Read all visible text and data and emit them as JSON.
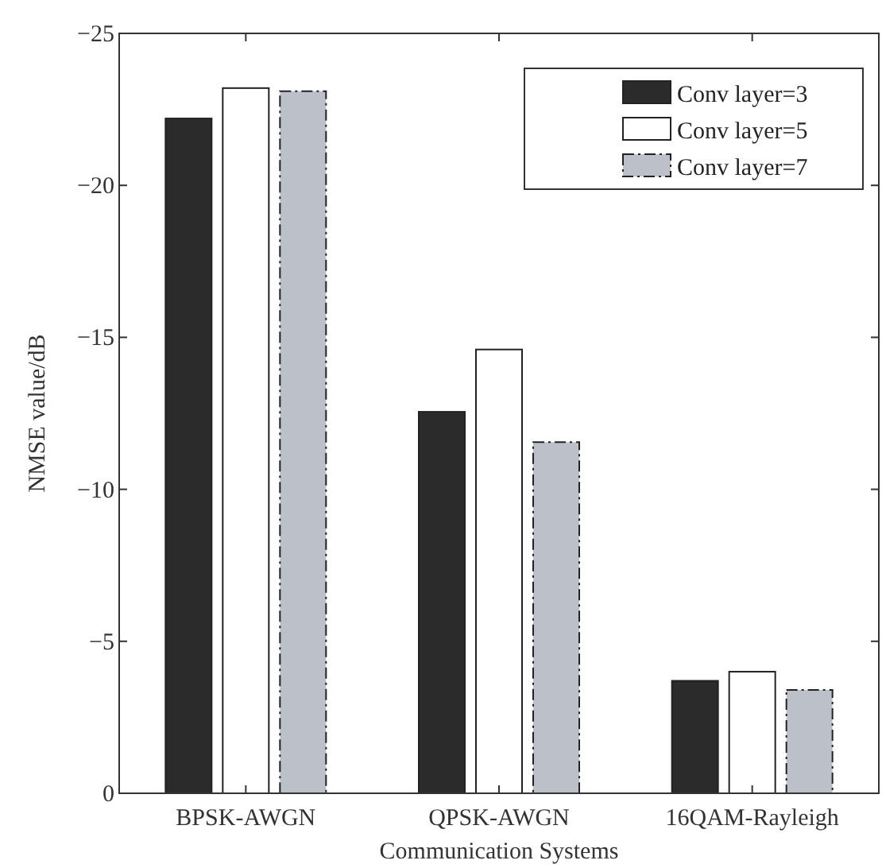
{
  "chart_data": {
    "type": "bar",
    "xlabel": "Communication Systems",
    "ylabel": "NMSE value/dB",
    "categories": [
      "BPSK-AWGN",
      "QPSK-AWGN",
      "16QAM-Rayleigh"
    ],
    "series": [
      {
        "name": "Conv layer=3",
        "color": "#2b2b2b",
        "values": [
          -22.2,
          -12.55,
          -3.7
        ]
      },
      {
        "name": "Conv layer=5",
        "color": "#ffffff",
        "values": [
          -23.2,
          -14.6,
          -4.0
        ]
      },
      {
        "name": "Conv layer=7",
        "color": "#bcc1c9",
        "values": [
          -23.1,
          -11.55,
          -3.4
        ],
        "line_style": "dashed"
      }
    ],
    "ylim": [
      0,
      -25
    ],
    "yticks": [
      {
        "value": 0,
        "label": "0"
      },
      {
        "value": -5,
        "label": "−5"
      },
      {
        "value": -10,
        "label": "−10"
      },
      {
        "value": -15,
        "label": "−15"
      },
      {
        "value": -20,
        "label": "−20"
      },
      {
        "value": -25,
        "label": "−25"
      }
    ],
    "grid": false,
    "legend": "top right"
  }
}
